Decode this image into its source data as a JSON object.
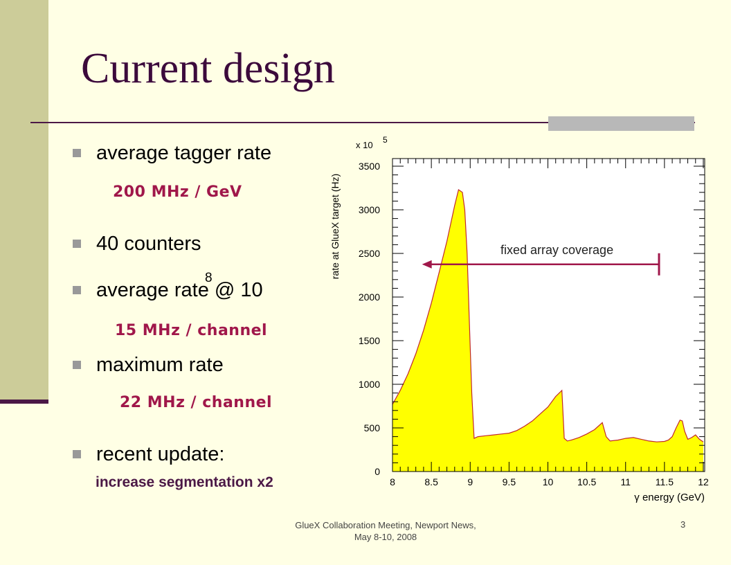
{
  "slide": {
    "title": "Current design",
    "bullets": [
      {
        "text": "average tagger rate",
        "detail": "200 MHz / GeV"
      },
      {
        "text": "40 counters"
      },
      {
        "text": "average rate @ 10",
        "superscript": "8",
        "detail": "15 MHz / channel"
      },
      {
        "text": "maximum rate",
        "detail": "22 MHz / channel"
      },
      {
        "text": "recent update:",
        "detail": "increase segmentation x2"
      }
    ],
    "footer_line1": "GlueX Collaboration Meeting, Newport News,",
    "footer_line2": "May 8-10, 2008",
    "page_number": "3"
  },
  "colors": {
    "title": "#3C0A3C",
    "accent": "#A0174A",
    "fill": "#FFFF00",
    "curve": "#C0282D"
  },
  "chart_data": {
    "type": "area",
    "multiplier_label": "x 10",
    "multiplier_exp": "5",
    "xlabel": "γ energy (GeV)",
    "ylabel": "rate at GlueX target (Hz)",
    "xlim": [
      8,
      12
    ],
    "ylim": [
      0,
      3600
    ],
    "xticks": [
      8,
      8.5,
      9,
      9.5,
      10,
      10.5,
      11,
      11.5,
      12
    ],
    "xtick_labels": [
      "8",
      "8.5",
      "9",
      "9.5",
      "10",
      "10.5",
      "11",
      "11.5",
      "12"
    ],
    "yticks": [
      0,
      500,
      1000,
      1500,
      2000,
      2500,
      3000,
      3500
    ],
    "ytick_labels": [
      "0",
      "500",
      "1000",
      "1500",
      "2000",
      "2500",
      "3000",
      "3500"
    ],
    "x": [
      8.0,
      8.1,
      8.2,
      8.3,
      8.4,
      8.5,
      8.6,
      8.7,
      8.8,
      8.85,
      8.9,
      8.93,
      8.96,
      8.99,
      9.02,
      9.05,
      9.1,
      9.2,
      9.3,
      9.4,
      9.5,
      9.6,
      9.7,
      9.8,
      9.9,
      10.0,
      10.1,
      10.18,
      10.21,
      10.25,
      10.3,
      10.4,
      10.5,
      10.6,
      10.7,
      10.75,
      10.8,
      10.9,
      11.0,
      11.1,
      11.2,
      11.3,
      11.4,
      11.5,
      11.55,
      11.6,
      11.65,
      11.7,
      11.73,
      11.76,
      11.8,
      11.85,
      11.9,
      11.95,
      12.0
    ],
    "y": [
      770,
      930,
      1120,
      1350,
      1620,
      1930,
      2280,
      2640,
      3050,
      3230,
      3200,
      3000,
      2500,
      1700,
      900,
      380,
      400,
      410,
      420,
      430,
      440,
      470,
      520,
      580,
      660,
      740,
      860,
      930,
      380,
      350,
      360,
      390,
      430,
      480,
      560,
      400,
      350,
      360,
      380,
      390,
      370,
      350,
      340,
      345,
      360,
      400,
      500,
      590,
      580,
      460,
      370,
      390,
      420,
      370,
      340
    ],
    "annotation": {
      "text": "fixed array coverage",
      "arrow_from_x": 11.43,
      "arrow_to_x": 8.38,
      "arrow_y": 2375
    }
  }
}
